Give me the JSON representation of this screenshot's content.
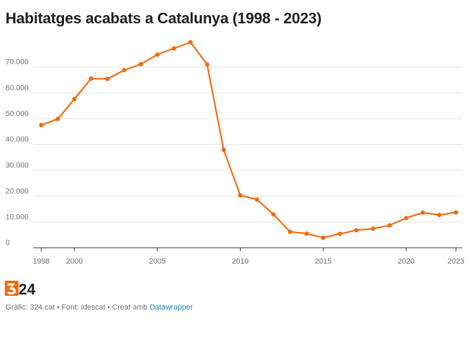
{
  "title": "Habitatges acabats a Catalunya (1998 - 2023)",
  "footer": {
    "prefix": "Gràfic: 324.cat • Font: Idescat • Creat amb ",
    "link": "Datawrapper"
  },
  "logo": {
    "name": "324-logo",
    "text": "324"
  },
  "colors": {
    "line": "#f26a0f",
    "grid": "#e5e5e5",
    "axis": "#333333",
    "logo_orange": "#f26a0f",
    "logo_dark": "#1d1d1d"
  },
  "chart_data": {
    "type": "line",
    "title": "Habitatges acabats a Catalunya (1998 - 2023)",
    "xlabel": "",
    "ylabel": "",
    "xlim": [
      1998,
      2023
    ],
    "ylim": [
      0,
      80000
    ],
    "grid": true,
    "x_ticks": [
      "1998",
      "2000",
      "2005",
      "2010",
      "2015",
      "2020",
      "2023"
    ],
    "y_ticks": [
      "0",
      "10.000",
      "20.000",
      "30.000",
      "40.000",
      "50.000",
      "60.000",
      "70.000"
    ],
    "series": [
      {
        "x": [
          1998,
          1999,
          2000,
          2001,
          2002,
          2003,
          2004,
          2005,
          2006,
          2007,
          2008,
          2009,
          2010,
          2011,
          2012,
          2013,
          2014,
          2015,
          2016,
          2017,
          2018,
          2019,
          2020,
          2021,
          2022,
          2023
        ],
        "values": [
          47500,
          49900,
          57600,
          65500,
          65400,
          68800,
          71100,
          74800,
          77200,
          79600,
          71000,
          37900,
          20300,
          18700,
          12900,
          6200,
          5500,
          3900,
          5400,
          6800,
          7400,
          8700,
          11500,
          13600,
          12700,
          13700
        ]
      }
    ]
  }
}
